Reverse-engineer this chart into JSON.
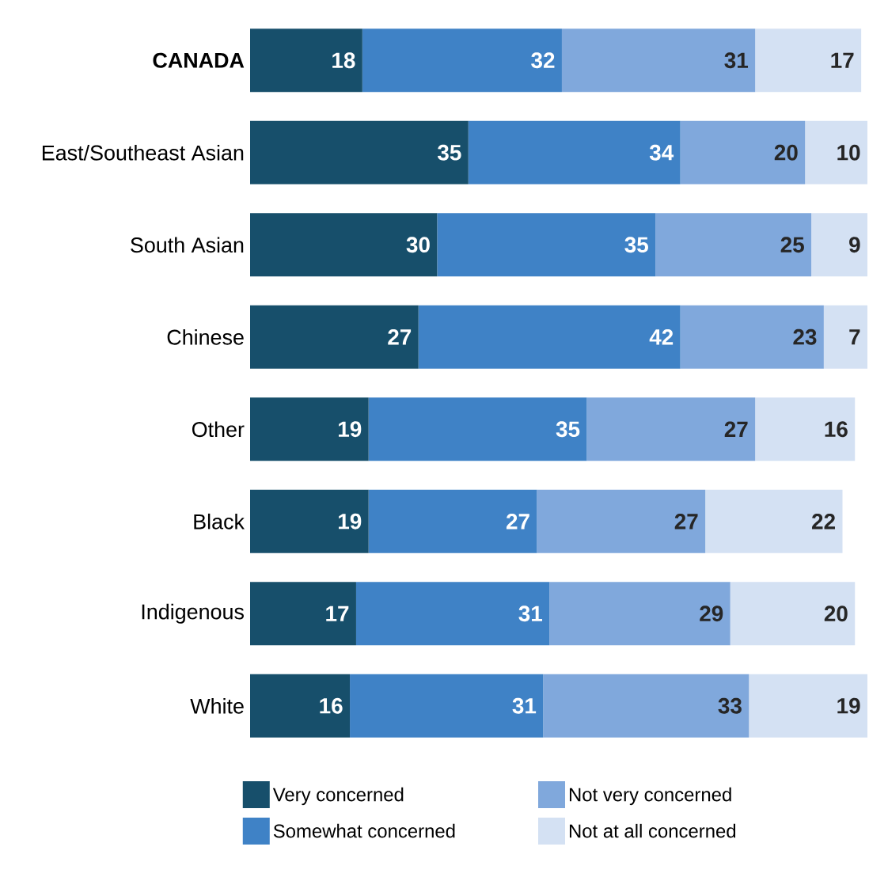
{
  "chart_data": {
    "type": "bar",
    "orientation": "horizontal",
    "stacked": true,
    "data_labels": true,
    "legend": "bottom",
    "categories": [
      "**CANADA**",
      "East/Southeast Asian",
      "South Asian",
      "Chinese",
      "Other",
      "Black",
      "Indigenous",
      "White"
    ],
    "series": [
      {
        "name": "Very concerned",
        "color": "#174f6b",
        "values": [
          18,
          35,
          30,
          27,
          19,
          19,
          17,
          16
        ]
      },
      {
        "name": "Somewhat concerned",
        "color": "#3f82c6",
        "values": [
          32,
          34,
          35,
          42,
          35,
          27,
          31,
          31
        ]
      },
      {
        "name": "Not very concerned",
        "color": "#80a8dc",
        "values": [
          31,
          20,
          25,
          23,
          27,
          27,
          29,
          33
        ]
      },
      {
        "name": "Not at all concerned",
        "color": "#d4e1f3",
        "values": [
          17,
          10,
          9,
          7,
          16,
          22,
          20,
          19
        ]
      }
    ]
  }
}
